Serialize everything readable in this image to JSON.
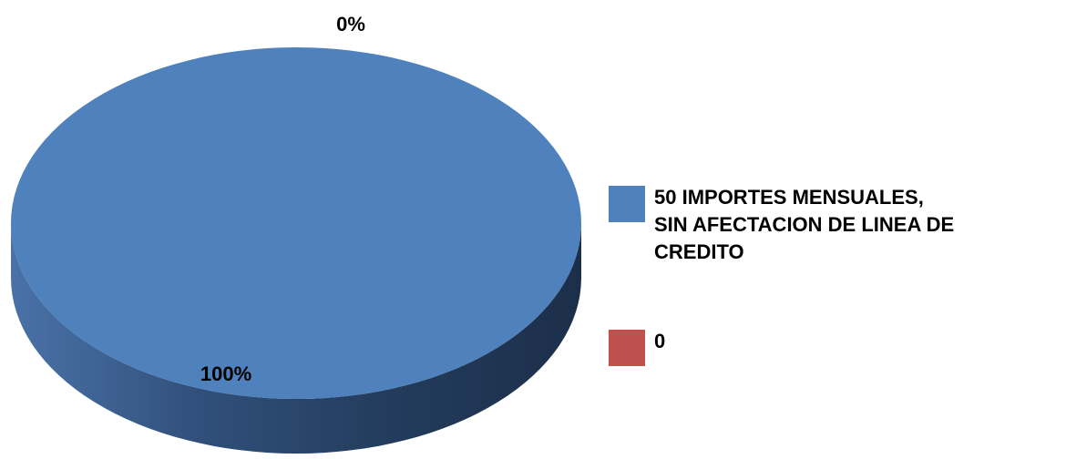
{
  "chart_data": {
    "type": "pie",
    "title": "",
    "series": [
      {
        "values": [
          100,
          0
        ],
        "categories": [
          "50 IMPORTES MENSUALES,\n SIN AFECTACION DE LINEA DE\n CREDITO",
          "0"
        ]
      }
    ],
    "data_labels": [
      "100%",
      "0%"
    ],
    "colors": [
      "#4f81bd",
      "#c0504d"
    ],
    "legend_position": "right",
    "style": "3d"
  },
  "legend": {
    "items": [
      {
        "label": "50 IMPORTES MENSUALES,\n SIN AFECTACION DE LINEA DE\n CREDITO",
        "color": "#4f81bd"
      },
      {
        "label": "0",
        "color": "#c0504d"
      }
    ]
  }
}
